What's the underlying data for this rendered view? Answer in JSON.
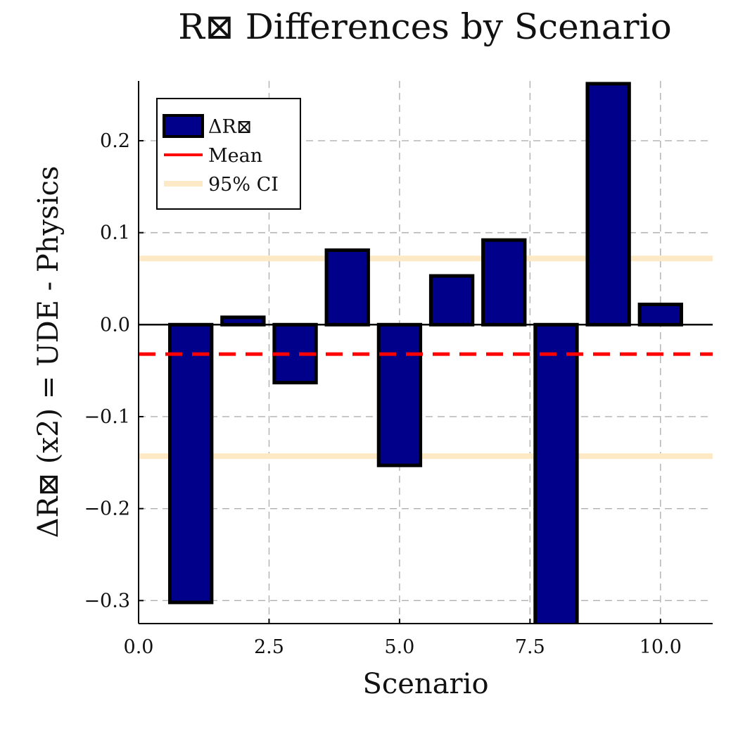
{
  "chart_data": {
    "type": "bar",
    "title": "R⊠ Differences by Scenario",
    "xlabel": "Scenario",
    "ylabel": "ΔR⊠ (x2) = UDE - Physics",
    "x": [
      1,
      2,
      3,
      4,
      5,
      6,
      7,
      8,
      9,
      10
    ],
    "values": [
      -0.302,
      0.008,
      -0.063,
      0.081,
      -0.153,
      0.053,
      0.092,
      -0.33,
      0.262,
      0.022
    ],
    "xlim": [
      0,
      11
    ],
    "ylim": [
      -0.325,
      0.265
    ],
    "xticks": [
      0,
      2.5,
      5,
      7.5,
      10
    ],
    "xtick_labels": [
      "0.0",
      "2.5",
      "5.0",
      "7.5",
      "10.0"
    ],
    "yticks": [
      -0.3,
      -0.2,
      -0.1,
      0,
      0.1,
      0.2
    ],
    "ytick_labels": [
      "−0.3",
      "−0.2",
      "−0.1",
      "0.0",
      "0.1",
      "0.2"
    ],
    "mean": -0.032,
    "ci_lower": -0.143,
    "ci_upper": 0.072,
    "grid": true,
    "legend_position": "top-left",
    "legend": [
      {
        "label": "ΔR⊠",
        "kind": "bar"
      },
      {
        "label": "Mean",
        "kind": "line"
      },
      {
        "label": "95% CI",
        "kind": "band"
      }
    ],
    "colors": {
      "bar": "#00008b",
      "mean": "#ff0000",
      "ci": "#fde9c6",
      "grid": "#b0b0b0"
    }
  }
}
